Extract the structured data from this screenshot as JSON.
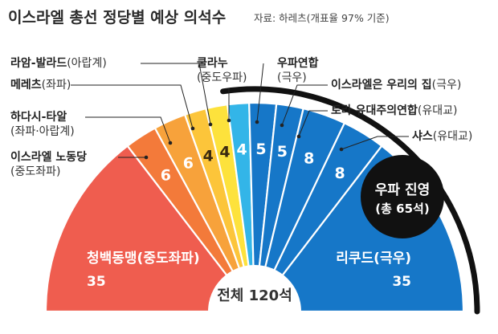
{
  "title": "이스라엘 총선 정당별 예상 의석수",
  "source": "자료: 하레츠(개표율 97% 기준)",
  "chart_data": {
    "type": "pie",
    "title": "이스라엘 총선 정당별 예상 의석수",
    "total_label": "전체 120석",
    "total": 120,
    "parties": [
      {
        "name": "청백동맹",
        "affiliation": "(중도좌파)",
        "seats": 35,
        "color": "#ef5d4f",
        "text_color": "#ffffff"
      },
      {
        "name": "이스라엘 노동당",
        "affiliation": "(중도좌파)",
        "seats": 6,
        "color": "#f37a3a",
        "text_color": "#ffffff"
      },
      {
        "name": "하다시-타알",
        "affiliation": "(좌파·아랍계)",
        "seats": 6,
        "color": "#f7a23b",
        "text_color": "#ffffff"
      },
      {
        "name": "메레츠",
        "affiliation": "(좌파)",
        "seats": 4,
        "color": "#fcc53a",
        "text_color": "#3a2a10"
      },
      {
        "name": "라암-발라드",
        "affiliation": "(아랍계)",
        "seats": 4,
        "color": "#fde23c",
        "text_color": "#3a2a10"
      },
      {
        "name": "쿨라누",
        "affiliation": "(중도우파)",
        "seats": 4,
        "color": "#33b5e8",
        "text_color": "#ffffff"
      },
      {
        "name": "우파연합",
        "affiliation": "(극우)",
        "seats": 5,
        "color": "#1677c8",
        "text_color": "#ffffff"
      },
      {
        "name": "이스라엘은 우리의 집",
        "affiliation": "(극우)",
        "seats": 5,
        "color": "#1677c8",
        "text_color": "#ffffff"
      },
      {
        "name": "토라 유대주의연합",
        "affiliation": "(유대교)",
        "seats": 8,
        "color": "#1677c8",
        "text_color": "#ffffff"
      },
      {
        "name": "샤스",
        "affiliation": "(유대교)",
        "seats": 8,
        "color": "#1677c8",
        "text_color": "#ffffff"
      },
      {
        "name": "리쿠드",
        "affiliation": "(극우)",
        "seats": 35,
        "color": "#1677c8",
        "text_color": "#ffffff"
      }
    ],
    "right_bloc": {
      "label": "우파 진영",
      "sub": "(총 65석)",
      "seats": 65,
      "color": "#111111"
    }
  }
}
